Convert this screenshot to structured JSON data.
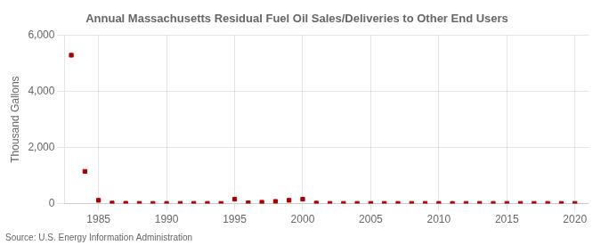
{
  "chart_data": {
    "type": "scatter",
    "title": "Annual Massachusetts Residual Fuel Oil Sales/Deliveries to Other End Users",
    "ylabel": "Thousand Gallons",
    "source": "Source: U.S. Energy Information Administration",
    "x": [
      1983,
      1984,
      1985,
      1986,
      1987,
      1988,
      1989,
      1990,
      1991,
      1992,
      1993,
      1994,
      1995,
      1996,
      1997,
      1998,
      1999,
      2000,
      2001,
      2002,
      2003,
      2004,
      2005,
      2006,
      2007,
      2008,
      2009,
      2010,
      2011,
      2012,
      2013,
      2014,
      2015,
      2016,
      2017,
      2018,
      2019,
      2020
    ],
    "values": [
      5290,
      1150,
      120,
      20,
      15,
      10,
      10,
      10,
      10,
      10,
      10,
      10,
      160,
      30,
      50,
      80,
      120,
      160,
      20,
      10,
      10,
      10,
      10,
      10,
      10,
      10,
      10,
      10,
      10,
      10,
      10,
      10,
      10,
      10,
      10,
      10,
      10,
      10
    ],
    "color": "#aa0000",
    "marker": "square",
    "grid": true,
    "xlim": [
      1982.5,
      2021
    ],
    "xticks": [
      1985,
      1990,
      1995,
      2000,
      2005,
      2010,
      2015,
      2020
    ],
    "ylim": [
      0,
      6000
    ],
    "yticks": [
      0,
      {
        "value": 2000,
        "label": "2,000"
      },
      {
        "value": 4000,
        "label": "4,000"
      },
      {
        "value": 6000,
        "label": "6,000"
      }
    ]
  }
}
